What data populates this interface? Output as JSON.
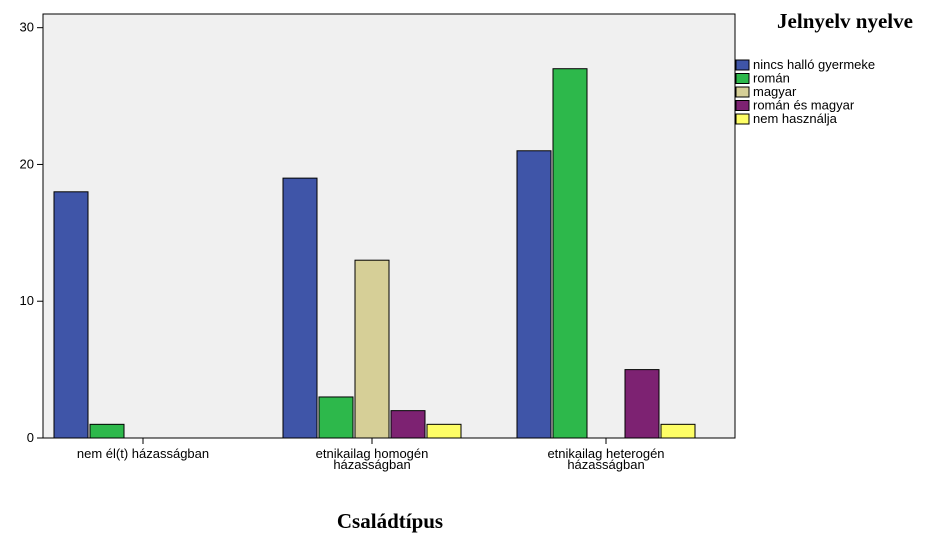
{
  "chart_data": {
    "type": "bar",
    "title": "",
    "xlabel": "Családtípus",
    "ylabel": "",
    "ylim": [
      0,
      31
    ],
    "yticks": [
      0,
      10,
      20,
      30
    ],
    "grid": false,
    "legend_position": "right",
    "legend_title": "Jelnyelv nyelve",
    "categories": [
      [
        "nem él(t) házasságban"
      ],
      [
        "etnikailag homogén",
        "házasságban"
      ],
      [
        "etnikailag heterogén",
        "házasságban"
      ]
    ],
    "series": [
      {
        "name": "nincs halló gyermeke",
        "color": "#3f55a8",
        "values": [
          18,
          19,
          21
        ]
      },
      {
        "name": "román",
        "color": "#2db84b",
        "values": [
          1,
          3,
          27
        ]
      },
      {
        "name": "magyar",
        "color": "#d6cf97",
        "values": [
          0,
          13,
          0
        ]
      },
      {
        "name": "román és magyar",
        "color": "#7d2272",
        "values": [
          0,
          2,
          5
        ]
      },
      {
        "name": "nem használja",
        "color": "#fefe66",
        "values": [
          0,
          1,
          1
        ]
      }
    ],
    "plot_background": "#f0f0f0"
  }
}
